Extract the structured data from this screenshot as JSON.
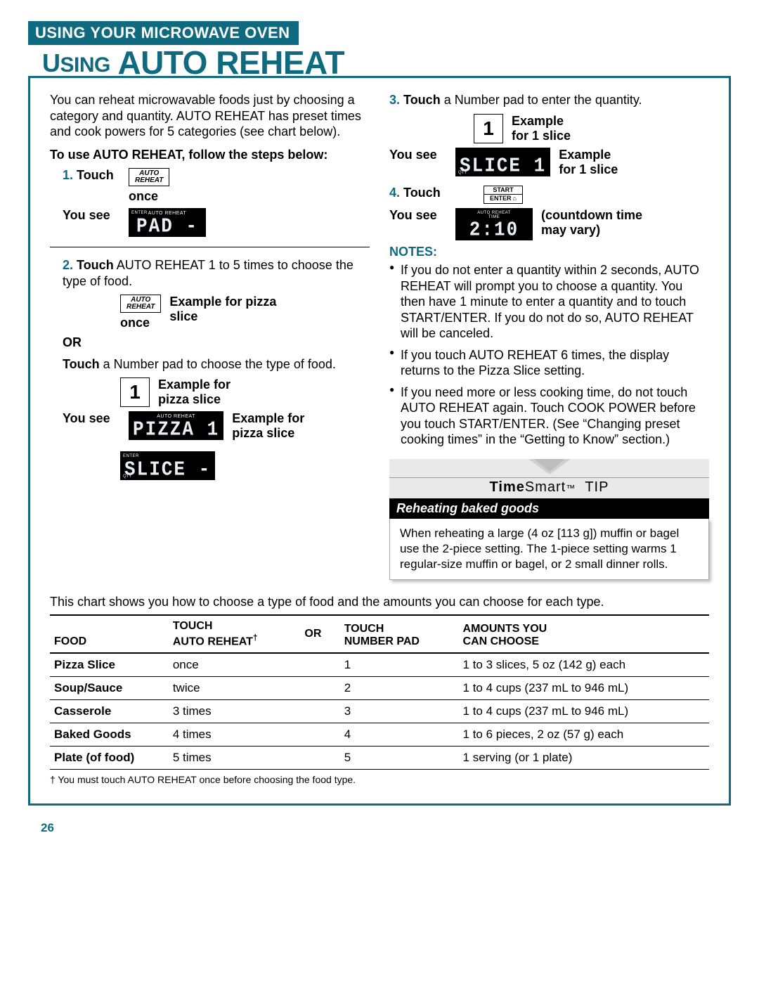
{
  "colors": {
    "brand": "#0f6a80",
    "lcd_bg": "#000000",
    "lcd_fg": "#e8eef2",
    "tip_grey": "#e9e9e9"
  },
  "banner": "USING YOUR MICROWAVE OVEN",
  "heading_prefix_small": "U",
  "heading_prefix_rest": "SING",
  "heading_main": "AUTO REHEAT",
  "intro": "You can reheat microwavable foods just by choosing a category and quantity. AUTO REHEAT has preset times and cook powers for 5 categories (see chart below).",
  "steps_intro": "To use AUTO REHEAT, follow the steps below:",
  "s1": {
    "num": "1.",
    "label": "Touch",
    "btn": "AUTO\nREHEAT",
    "once": "once",
    "you_see": "You see",
    "lcd_top": "AUTO  REHEAT",
    "lcd_enter": "ENTER",
    "lcd_main": "PAD -"
  },
  "s2": {
    "num": "2.",
    "text_a": "Touch",
    "text_rest": " AUTO REHEAT 1 to 5 times to choose the type of food.",
    "btn": "AUTO\nREHEAT",
    "once": "once",
    "ex1": "Example for pizza slice",
    "or": "OR",
    "alt": "Touch",
    "alt_rest": " a Number pad to choose the type of food.",
    "numpad": "1",
    "ex2": "Example for pizza slice",
    "you_see": "You see",
    "lcd1_top": "AUTO  REHEAT",
    "lcd1_main": "PIZZA 1",
    "ex3": "Example for pizza slice",
    "lcd2_enter": "ENTER",
    "lcd2_qty": "QTY",
    "lcd2_main": "SLICE -"
  },
  "s3": {
    "num": "3.",
    "text_a": "Touch",
    "text_rest": " a Number pad to enter the quantity.",
    "numpad": "1",
    "ex1": "Example\nfor 1 slice",
    "you_see": "You see",
    "lcd_qty": "QTY",
    "lcd_main": "SLICE 1",
    "ex2": "Example\nfor 1 slice"
  },
  "s4": {
    "num": "4.",
    "label": "Touch",
    "start1": "START",
    "start2": "ENTER",
    "you_see": "You see",
    "lcd_top": "AUTO  REHEAT\nTIME",
    "lcd_main": "2:10",
    "ex": "(countdown time may vary)"
  },
  "notes_hd": "NOTES:",
  "notes": [
    "If you do not enter a quantity within 2 seconds, AUTO REHEAT will prompt you to choose a quantity. You then have 1 minute to enter a quantity and to touch START/ENTER. If you do not do so, AUTO REHEAT will be canceled.",
    "If you touch AUTO REHEAT 6 times, the display returns to the Pizza Slice setting.",
    "If you need more or less cooking time, do not touch AUTO REHEAT again. Touch COOK POWER before you touch START/ENTER. (See “Changing preset cooking times” in the “Getting to Know” section.)"
  ],
  "tip": {
    "title_a": "Time",
    "title_b": "Smart",
    "title_sym": "™",
    "title_c": "TIP",
    "sub": "Reheating baked goods",
    "body": "When reheating a large (4 oz [113 g]) muffin or bagel use the 2-piece setting. The 1-piece setting warms 1 regular-size muffin or bagel, or 2 small dinner rolls."
  },
  "chart_intro": "This chart shows you how to choose a type of food and the amounts you can choose for each type.",
  "chart": {
    "h1": "FOOD",
    "h2a": "TOUCH",
    "h2b": "AUTO REHEAT",
    "h2c": "†",
    "h3": "OR",
    "h4a": "TOUCH",
    "h4b": "NUMBER PAD",
    "h5a": "AMOUNTS YOU",
    "h5b": "CAN CHOOSE",
    "rows": [
      {
        "f": "Pizza Slice",
        "a": "once",
        "n": "1",
        "amt": "1 to 3 slices, 5 oz (142 g) each"
      },
      {
        "f": "Soup/Sauce",
        "a": "twice",
        "n": "2",
        "amt": "1 to 4 cups (237 mL to 946 mL)"
      },
      {
        "f": "Casserole",
        "a": "3 times",
        "n": "3",
        "amt": "1 to 4 cups (237 mL to 946 mL)"
      },
      {
        "f": "Baked Goods",
        "a": "4 times",
        "n": "4",
        "amt": "1 to 6 pieces, 2 oz (57 g) each"
      },
      {
        "f": "Plate (of food)",
        "a": "5 times",
        "n": "5",
        "amt": "1 serving (or 1 plate)"
      }
    ]
  },
  "footnote": "† You must touch AUTO REHEAT once before choosing the food type.",
  "pagenum": "26"
}
